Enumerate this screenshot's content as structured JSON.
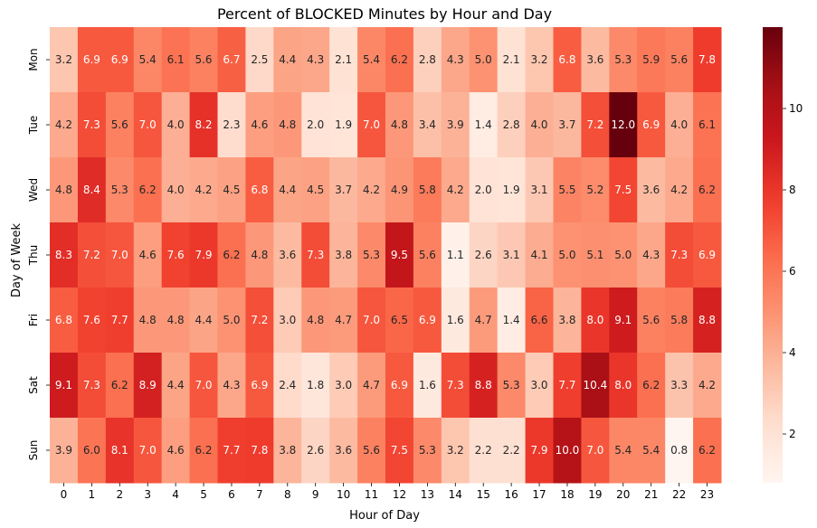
{
  "chart_data": {
    "type": "heatmap",
    "title": "Percent of BLOCKED Minutes by Hour and Day",
    "xlabel": "Hour of Day",
    "ylabel": "Day of Week",
    "x_categories": [
      "0",
      "1",
      "2",
      "3",
      "4",
      "5",
      "6",
      "7",
      "8",
      "9",
      "10",
      "11",
      "12",
      "13",
      "14",
      "15",
      "16",
      "17",
      "18",
      "19",
      "20",
      "21",
      "22",
      "23"
    ],
    "y_categories": [
      "Mon",
      "Tue",
      "Wed",
      "Thu",
      "Fri",
      "Sat",
      "Sun"
    ],
    "values": [
      [
        3.2,
        6.9,
        6.9,
        5.4,
        6.1,
        5.6,
        6.7,
        2.5,
        4.4,
        4.3,
        2.1,
        5.4,
        6.2,
        2.8,
        4.3,
        5.0,
        2.1,
        3.2,
        6.8,
        3.6,
        5.3,
        5.9,
        5.6,
        7.8
      ],
      [
        4.2,
        7.3,
        5.6,
        7.0,
        4.0,
        8.2,
        2.3,
        4.6,
        4.8,
        2.0,
        1.9,
        7.0,
        4.8,
        3.4,
        3.9,
        1.4,
        2.8,
        4.0,
        3.7,
        7.2,
        12.0,
        6.9,
        4.0,
        6.1
      ],
      [
        4.8,
        8.4,
        5.3,
        6.2,
        4.0,
        4.2,
        4.5,
        6.8,
        4.4,
        4.5,
        3.7,
        4.2,
        4.9,
        5.8,
        4.2,
        2.0,
        1.9,
        3.1,
        5.5,
        5.2,
        7.5,
        3.6,
        4.2,
        6.2
      ],
      [
        8.3,
        7.2,
        7.0,
        4.6,
        7.6,
        7.9,
        6.2,
        4.8,
        3.6,
        7.3,
        3.8,
        5.3,
        9.5,
        5.6,
        1.1,
        2.6,
        3.1,
        4.1,
        5.0,
        5.1,
        5.0,
        4.3,
        7.3,
        6.9
      ],
      [
        6.8,
        7.6,
        7.7,
        4.8,
        4.8,
        4.4,
        5.0,
        7.2,
        3.0,
        4.8,
        4.7,
        7.0,
        6.5,
        6.9,
        1.6,
        4.7,
        1.4,
        6.6,
        3.8,
        8.0,
        9.1,
        5.6,
        5.8,
        8.8
      ],
      [
        9.1,
        7.3,
        6.2,
        8.9,
        4.4,
        7.0,
        4.3,
        6.9,
        2.4,
        1.8,
        3.0,
        4.7,
        6.9,
        1.6,
        7.3,
        8.8,
        5.3,
        3.0,
        7.7,
        10.4,
        8.0,
        6.2,
        3.3,
        4.2
      ],
      [
        3.9,
        6.0,
        8.1,
        7.0,
        4.6,
        6.2,
        7.7,
        7.8,
        3.8,
        2.6,
        3.6,
        5.6,
        7.5,
        5.3,
        3.2,
        2.2,
        2.2,
        7.9,
        10.0,
        7.0,
        5.4,
        5.4,
        0.8,
        6.2
      ]
    ],
    "colormap": "Reds",
    "colorbar": {
      "ticks": [
        "2",
        "4",
        "6",
        "8",
        "10"
      ],
      "range": [
        0.8,
        12.0
      ]
    },
    "annotations": "cell values shown with one decimal",
    "grid": false
  }
}
